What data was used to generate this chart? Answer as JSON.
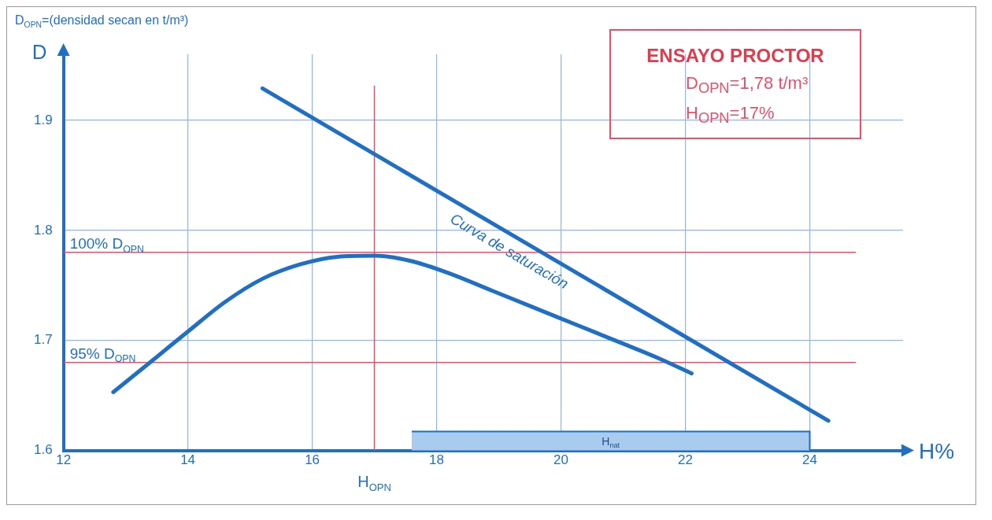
{
  "chart_data": {
    "type": "line",
    "title": "D$_{OPN}$=(densidad secan en t/m³)",
    "xlabel": "H%",
    "ylabel": "D",
    "xlim": [
      12,
      25.5
    ],
    "ylim": [
      1.6,
      1.96
    ],
    "xticks": [
      12,
      14,
      16,
      18,
      20,
      22,
      24
    ],
    "yticks": [
      1.6,
      1.7,
      1.8,
      1.9
    ],
    "grid": true,
    "legend": false,
    "marker": "none",
    "line_style": "solid",
    "series": [
      {
        "color": "#1f6fc6",
        "x": [
          12.8,
          13.5,
          14,
          14.6,
          15.2,
          15.8,
          16.4,
          17,
          17.6,
          18.2,
          18.9,
          19.6,
          20.3,
          21,
          21.6,
          22.1
        ],
        "values": [
          1.653,
          1.685,
          1.708,
          1.735,
          1.756,
          1.769,
          1.776,
          1.777,
          1.772,
          1.761,
          1.745,
          1.729,
          1.713,
          1.697,
          1.683,
          1.67
        ]
      },
      {
        "name": "Curva de saturación",
        "color": "#1f6fc6",
        "x": [
          15.2,
          24.3
        ],
        "values": [
          1.929,
          1.627
        ]
      }
    ],
    "ref_lines": [
      {
        "axis": "y",
        "value": 1.78,
        "label": "100% D$_{OPN}$",
        "color": "#e8506a"
      },
      {
        "axis": "y",
        "value": 1.68,
        "label": "95% D$_{OPN}$",
        "color": "#e8506a"
      },
      {
        "axis": "x",
        "value": 17,
        "label": "H$_{OPN}$",
        "color": "#e8506a"
      }
    ],
    "bands": [
      {
        "axis": "x",
        "from": 17.6,
        "to": 24,
        "label": "H$_{nat}$",
        "color": "#a9cbee"
      }
    ],
    "annotations": [
      "ENSAYO PROCTOR",
      "D$_{OPN}$=1,78 t/m³",
      "H$_{OPN}$=17%"
    ]
  }
}
